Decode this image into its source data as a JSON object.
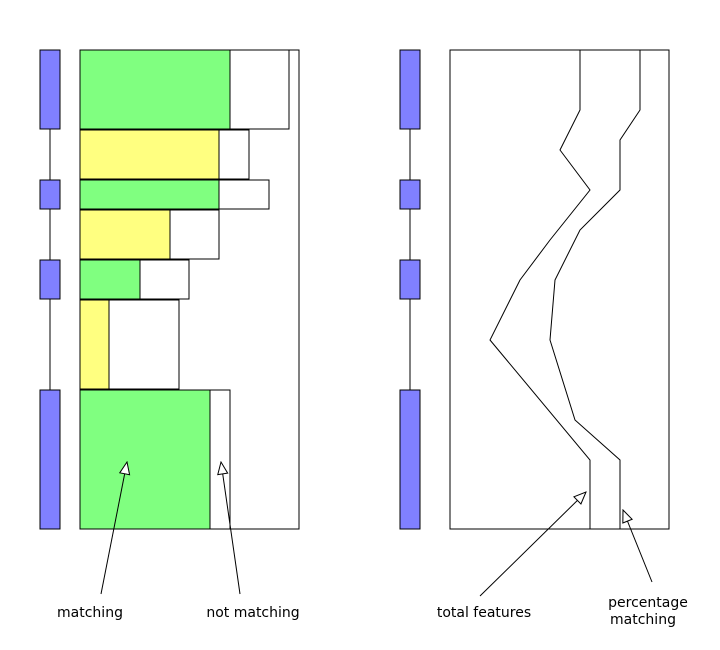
{
  "colors": {
    "exon": "#8080ff",
    "matching_a": "#80ff80",
    "matching_b": "#ffff80",
    "not_matching": "#ffffff",
    "outline": "#000000"
  },
  "annotations": {
    "matching": "matching",
    "not_matching": "not matching",
    "total_features": "total features",
    "percentage_matching_line1": "percentage",
    "percentage_matching_line2": "matching"
  }
}
